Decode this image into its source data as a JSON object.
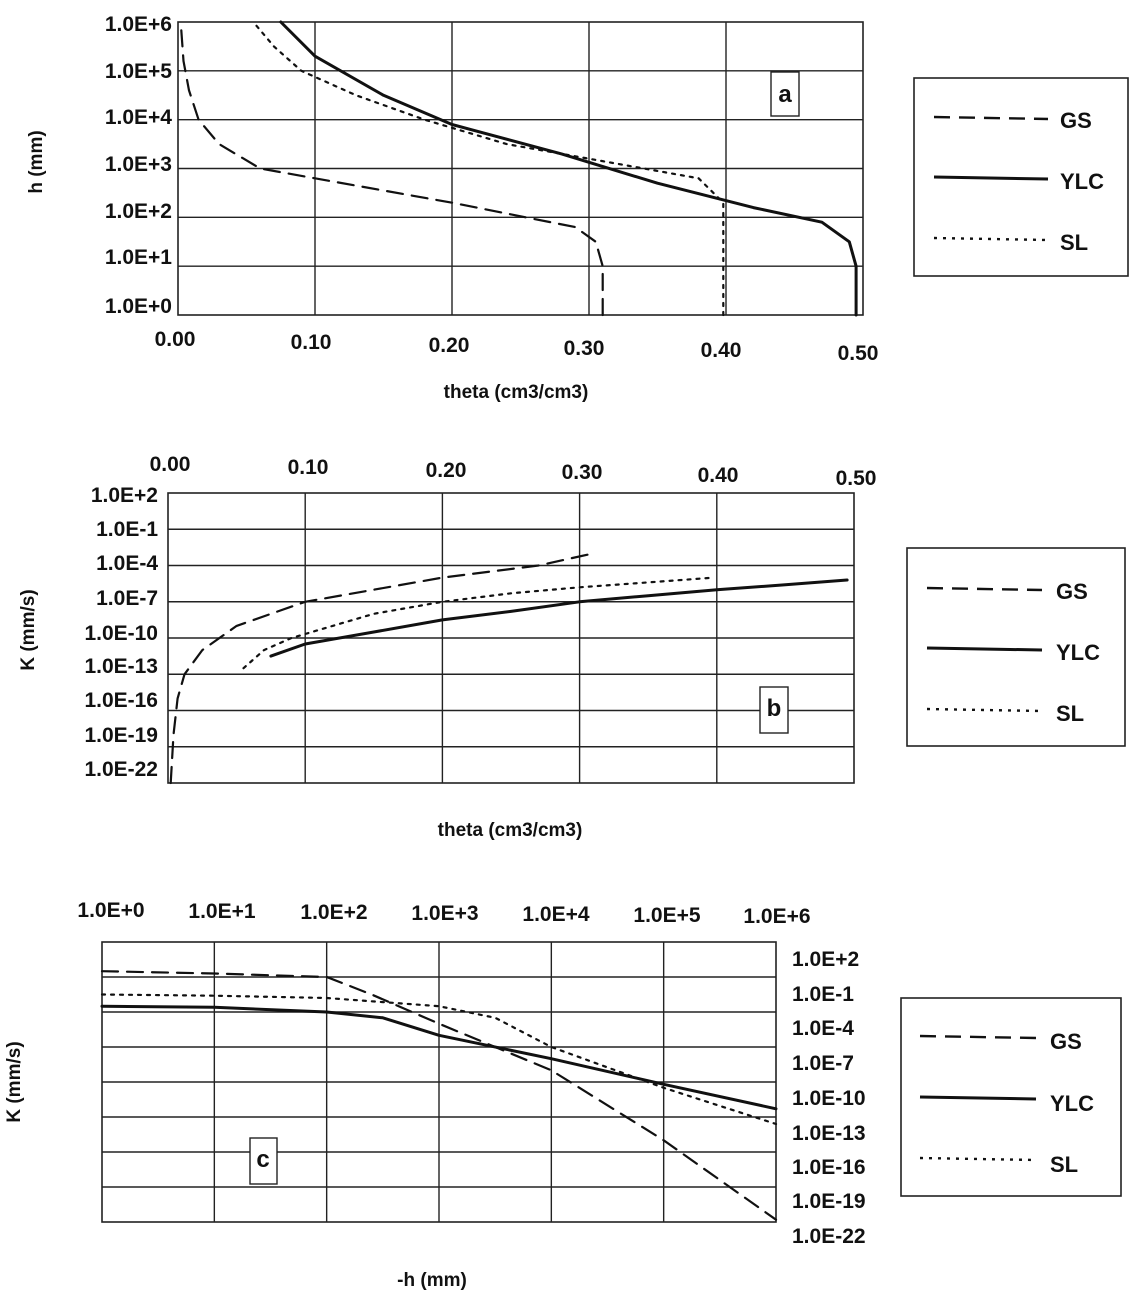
{
  "chart_data": [
    {
      "panel": "a",
      "type": "line",
      "ylabel": "h (mm)",
      "xlabel": "theta (cm3/cm3)",
      "yscale": "log",
      "xlim": [
        0.0,
        0.5
      ],
      "ylim_exp": [
        0,
        6
      ],
      "x_ticks": [
        "0.00",
        "0.10",
        "0.20",
        "0.30",
        "0.40",
        "0.50"
      ],
      "y_ticks": [
        "1.0E+0",
        "1.0E+1",
        "1.0E+2",
        "1.0E+3",
        "1.0E+4",
        "1.0E+5",
        "1.0E+6"
      ],
      "legend_position": "right",
      "series": [
        {
          "name": "GS",
          "style": "dashed",
          "points": [
            [
              0.31,
              0
            ],
            [
              0.31,
              1
            ],
            [
              0.305,
              1.5
            ],
            [
              0.29,
              1.8
            ],
            [
              0.2,
              2.3
            ],
            [
              0.1,
              2.8
            ],
            [
              0.06,
              3.0
            ],
            [
              0.03,
              3.5
            ],
            [
              0.015,
              4.0
            ],
            [
              0.008,
              4.6
            ],
            [
              0.004,
              5.2
            ],
            [
              0.002,
              6.0
            ]
          ]
        },
        {
          "name": "YLC",
          "style": "solid",
          "points": [
            [
              0.495,
              0
            ],
            [
              0.495,
              1
            ],
            [
              0.49,
              1.5
            ],
            [
              0.47,
              1.9
            ],
            [
              0.42,
              2.2
            ],
            [
              0.35,
              2.7
            ],
            [
              0.28,
              3.3
            ],
            [
              0.2,
              3.9
            ],
            [
              0.15,
              4.5
            ],
            [
              0.1,
              5.3
            ],
            [
              0.075,
              6.0
            ]
          ]
        },
        {
          "name": "SL",
          "style": "dotted",
          "points": [
            [
              0.398,
              0
            ],
            [
              0.398,
              2.3
            ],
            [
              0.38,
              2.8
            ],
            [
              0.32,
              3.1
            ],
            [
              0.24,
              3.5
            ],
            [
              0.18,
              4.0
            ],
            [
              0.13,
              4.5
            ],
            [
              0.09,
              5.0
            ],
            [
              0.07,
              5.5
            ],
            [
              0.055,
              6.0
            ]
          ]
        }
      ]
    },
    {
      "panel": "b",
      "type": "line",
      "ylabel": "K (mm/s)",
      "xlabel": "theta (cm3/cm3)",
      "yscale": "log",
      "xlim": [
        0.0,
        0.5
      ],
      "ylim_exp": [
        -22,
        2
      ],
      "x_ticks": [
        "0.00",
        "0.10",
        "0.20",
        "0.30",
        "0.40",
        "0.50"
      ],
      "y_ticks": [
        "1.0E+2",
        "1.0E-1",
        "1.0E-4",
        "1.0E-7",
        "1.0E-10",
        "1.0E-13",
        "1.0E-16",
        "1.0E-19",
        "1.0E-22"
      ],
      "legend_position": "right",
      "series": [
        {
          "name": "GS",
          "style": "dashed",
          "points": [
            [
              0.002,
              -22
            ],
            [
              0.004,
              -18
            ],
            [
              0.007,
              -15
            ],
            [
              0.012,
              -13
            ],
            [
              0.025,
              -11
            ],
            [
              0.05,
              -9
            ],
            [
              0.1,
              -7
            ],
            [
              0.15,
              -6
            ],
            [
              0.2,
              -5
            ],
            [
              0.27,
              -4
            ],
            [
              0.31,
              -3
            ]
          ]
        },
        {
          "name": "YLC",
          "style": "solid",
          "points": [
            [
              0.075,
              -11.5
            ],
            [
              0.1,
              -10.5
            ],
            [
              0.15,
              -9.5
            ],
            [
              0.2,
              -8.5
            ],
            [
              0.25,
              -7.8
            ],
            [
              0.3,
              -7.0
            ],
            [
              0.35,
              -6.5
            ],
            [
              0.4,
              -6.0
            ],
            [
              0.45,
              -5.6
            ],
            [
              0.495,
              -5.2
            ]
          ]
        },
        {
          "name": "SL",
          "style": "dotted",
          "points": [
            [
              0.055,
              -12.5
            ],
            [
              0.07,
              -11
            ],
            [
              0.09,
              -10
            ],
            [
              0.12,
              -9
            ],
            [
              0.15,
              -8
            ],
            [
              0.2,
              -7
            ],
            [
              0.25,
              -6.3
            ],
            [
              0.3,
              -5.8
            ],
            [
              0.35,
              -5.4
            ],
            [
              0.398,
              -5.0
            ]
          ]
        }
      ]
    },
    {
      "panel": "c",
      "type": "line",
      "ylabel": "K (mm/s)",
      "xlabel": "-h (mm)",
      "xscale": "log",
      "yscale": "log",
      "xlim_exp": [
        0,
        6
      ],
      "ylim_exp": [
        -22,
        2
      ],
      "x_ticks": [
        "1.0E+0",
        "1.0E+1",
        "1.0E+2",
        "1.0E+3",
        "1.0E+4",
        "1.0E+5",
        "1.0E+6"
      ],
      "y_ticks": [
        "1.0E+2",
        "1.0E-1",
        "1.0E-4",
        "1.0E-7",
        "1.0E-10",
        "1.0E-13",
        "1.0E-16",
        "1.0E-19",
        "1.0E-22"
      ],
      "legend_position": "right",
      "series": [
        {
          "name": "GS",
          "style": "dashed",
          "points": [
            [
              0,
              -0.5
            ],
            [
              1,
              -0.7
            ],
            [
              2,
              -1.0
            ],
            [
              2.4,
              -2.5
            ],
            [
              3,
              -5
            ],
            [
              4,
              -9
            ],
            [
              5,
              -15
            ],
            [
              6,
              -21.8
            ]
          ]
        },
        {
          "name": "YLC",
          "style": "solid",
          "points": [
            [
              0,
              -3.5
            ],
            [
              1,
              -3.6
            ],
            [
              2,
              -4.0
            ],
            [
              2.5,
              -4.5
            ],
            [
              3,
              -6
            ],
            [
              4,
              -8
            ],
            [
              5,
              -10.2
            ],
            [
              6,
              -12.3
            ]
          ]
        },
        {
          "name": "SL",
          "style": "dotted",
          "points": [
            [
              0,
              -2.5
            ],
            [
              1,
              -2.6
            ],
            [
              2,
              -2.8
            ],
            [
              3,
              -3.5
            ],
            [
              3.5,
              -4.5
            ],
            [
              4,
              -7
            ],
            [
              5,
              -10.5
            ],
            [
              6,
              -13.6
            ]
          ]
        }
      ]
    }
  ]
}
